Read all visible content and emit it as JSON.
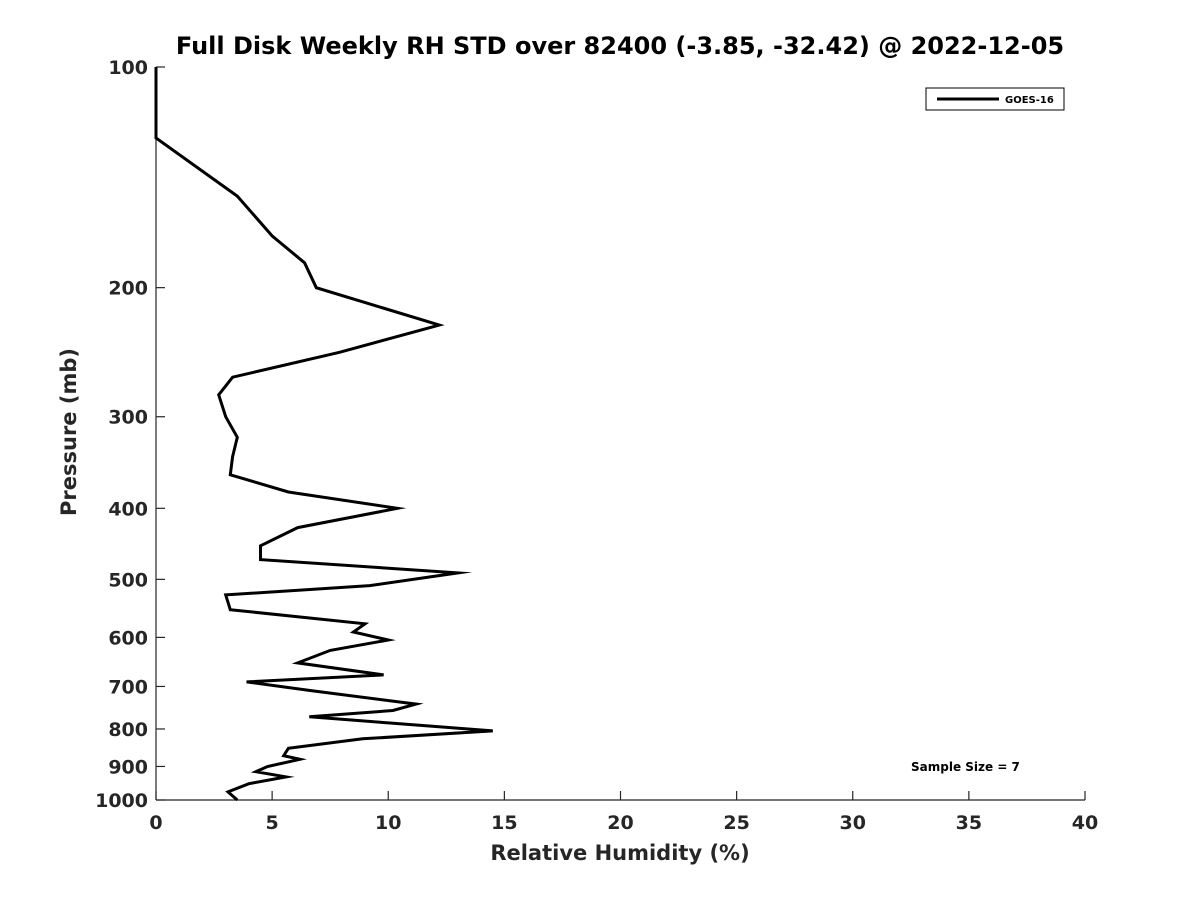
{
  "chart_data": {
    "type": "line",
    "title": "Full Disk Weekly RH STD over 82400 (-3.85, -32.42) @ 2022-12-05",
    "xlabel": "Relative Humidity (%)",
    "ylabel": "Pressure (mb)",
    "xlim": [
      0,
      40
    ],
    "ylim": [
      100,
      1000
    ],
    "y_scale": "log",
    "y_reversed": true,
    "x_ticks": [
      "0",
      "5",
      "10",
      "15",
      "20",
      "25",
      "30",
      "35",
      "40"
    ],
    "y_ticks": [
      "100",
      "200",
      "300",
      "400",
      "500",
      "600",
      "700",
      "800",
      "900",
      "1000"
    ],
    "grid": false,
    "legend_position": "top-right",
    "annotation": "Sample Size = 7",
    "series": [
      {
        "name": "GOES-16",
        "color": "#000000",
        "x": [
          0,
          0,
          3.5,
          5,
          6.4,
          6.9,
          12.2,
          7.9,
          3.3,
          2.7,
          3.0,
          3.5,
          3.3,
          3.2,
          5.7,
          10.4,
          6.1,
          4.5,
          4.5,
          13.0,
          9.2,
          3.0,
          3.2,
          9.0,
          8.5,
          10.0,
          7.5,
          6.1,
          9.8,
          3.9,
          6.8,
          11.2,
          10.2,
          6.6,
          10.0,
          14.5,
          8.9,
          5.7,
          5.5,
          6.2,
          4.8,
          4.3,
          5.6,
          4.0,
          3.1,
          3.5
        ],
        "y": [
          100,
          125,
          150,
          170,
          185,
          200,
          225,
          245,
          265,
          280,
          300,
          320,
          340,
          360,
          380,
          400,
          425,
          450,
          470,
          490,
          510,
          525,
          550,
          575,
          590,
          605,
          625,
          650,
          675,
          690,
          710,
          740,
          755,
          770,
          785,
          805,
          825,
          850,
          870,
          880,
          900,
          915,
          930,
          950,
          975,
          1000
        ]
      }
    ]
  }
}
